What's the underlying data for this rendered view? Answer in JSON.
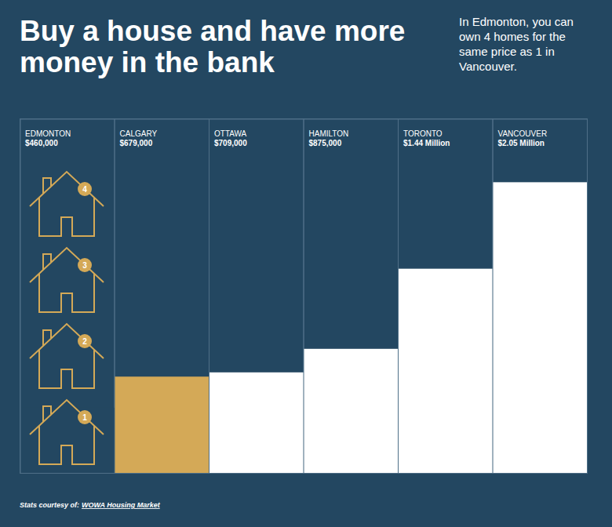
{
  "chart_data": {
    "type": "bar",
    "title": "Buy a house and have more money in the bank",
    "subtitle": "In Edmonton, you can own 4 homes for the same price as 1 in Vancouver.",
    "categories": [
      "EDMONTON",
      "CALGARY",
      "OTTAWA",
      "HAMILTON",
      "TORONTO",
      "VANCOUVER"
    ],
    "values": [
      460000,
      679000,
      709000,
      875000,
      1440000,
      2050000
    ],
    "value_labels": [
      "$460,000",
      "$679,000",
      "$709,000",
      "$875,000",
      "$1.44 Million",
      "$2.05 Million"
    ],
    "colors": [
      "#234761",
      "#d4a957",
      "#ffffff",
      "#ffffff",
      "#ffffff",
      "#ffffff"
    ],
    "ylim": [
      0,
      2500000
    ],
    "yticks": [],
    "tick_labels": false,
    "data_labels": true,
    "house_badges": [
      1,
      2,
      3,
      4
    ],
    "source": "Stats courtesy of:",
    "source_link": "WOWA Housing Market"
  }
}
